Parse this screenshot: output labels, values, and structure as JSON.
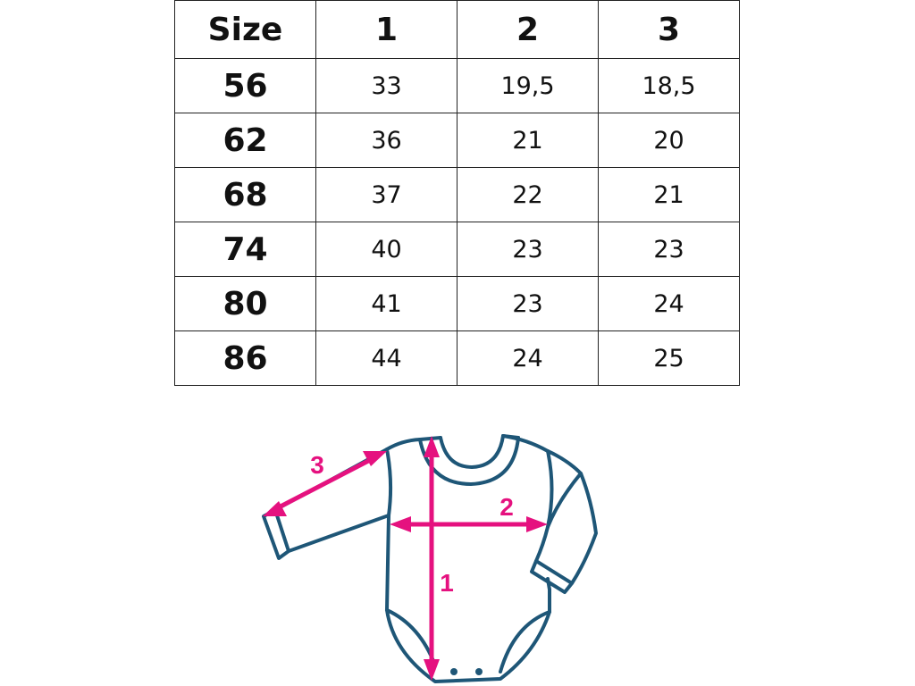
{
  "table": {
    "headers": [
      "Size",
      "1",
      "2",
      "3"
    ],
    "rows": [
      [
        "56",
        "33",
        "19,5",
        "18,5"
      ],
      [
        "62",
        "36",
        "21",
        "20"
      ],
      [
        "68",
        "37",
        "22",
        "21"
      ],
      [
        "74",
        "40",
        "23",
        "23"
      ],
      [
        "80",
        "41",
        "23",
        "24"
      ],
      [
        "86",
        "44",
        "24",
        "25"
      ]
    ]
  },
  "diagram": {
    "labels": {
      "length": "1",
      "width": "2",
      "sleeve": "3"
    },
    "colors": {
      "outline": "#1e5677",
      "arrow": "#e5117f"
    }
  }
}
